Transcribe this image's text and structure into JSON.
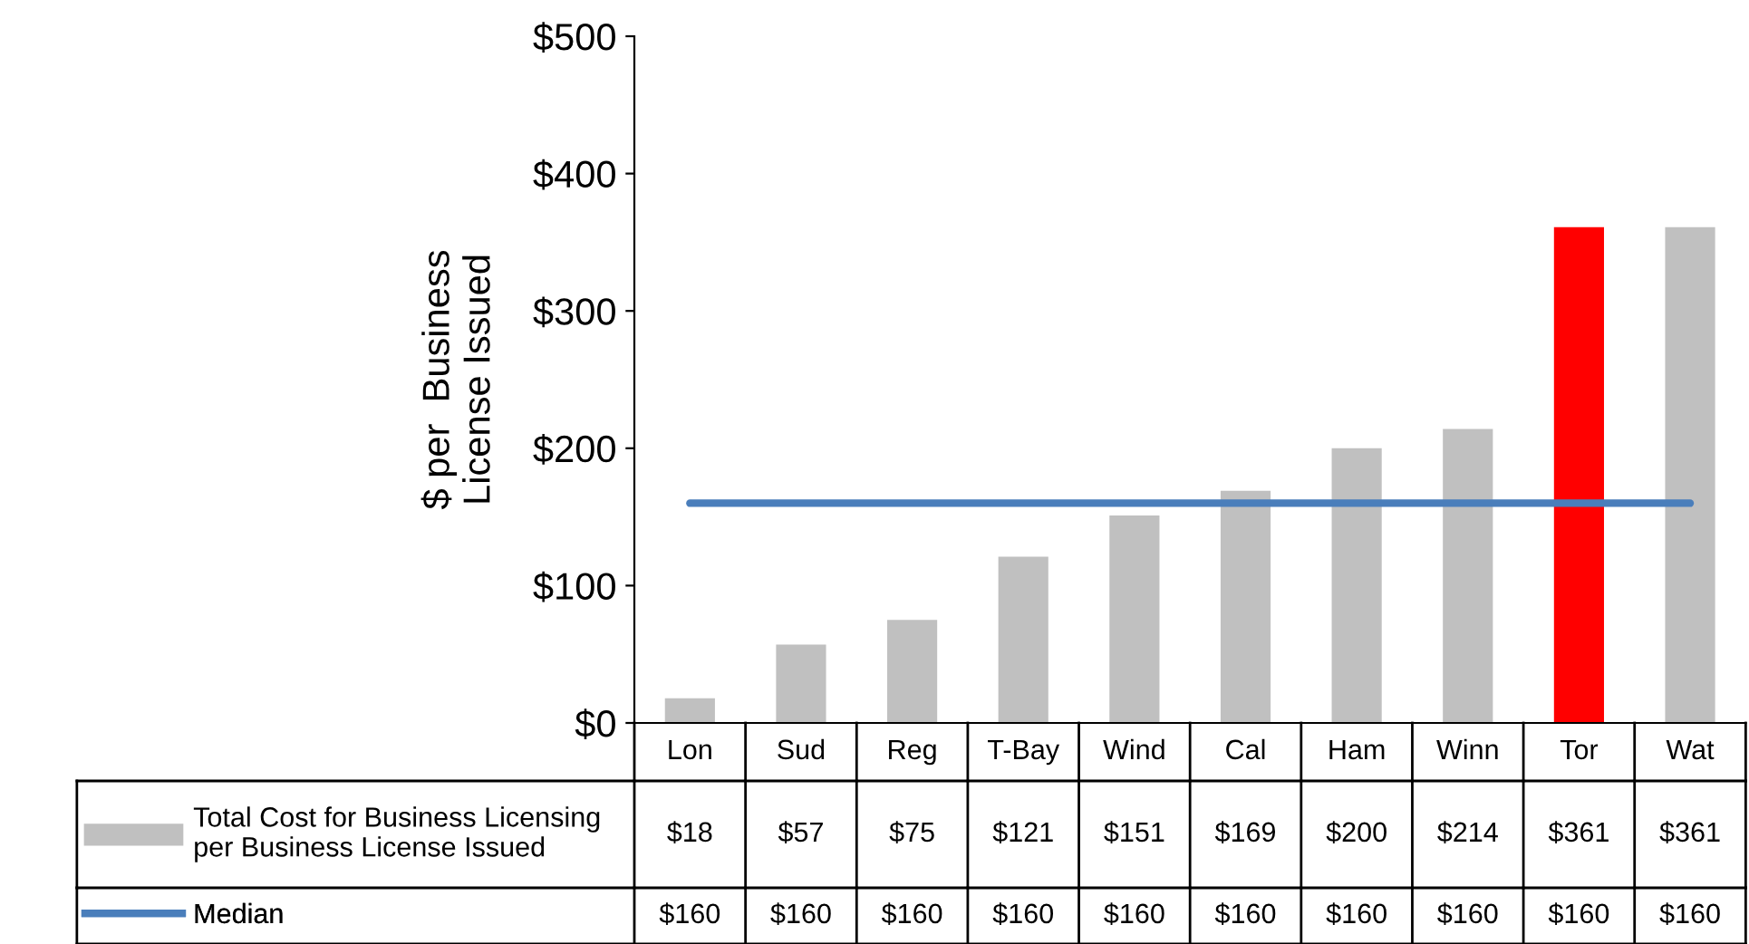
{
  "chart_data": {
    "type": "bar",
    "ylabel": "$ per  Business\nLicense Issued",
    "categories": [
      "Lon",
      "Sud",
      "Reg",
      "T-Bay",
      "Wind",
      "Cal",
      "Ham",
      "Winn",
      "Tor",
      "Wat"
    ],
    "series": [
      {
        "name": "Total Cost for Business Licensing\nper Business License Issued",
        "color": "#c0c0c0",
        "colors": [
          "#c0c0c0",
          "#c0c0c0",
          "#c0c0c0",
          "#c0c0c0",
          "#c0c0c0",
          "#c0c0c0",
          "#c0c0c0",
          "#c0c0c0",
          "#ff0000",
          "#c0c0c0"
        ],
        "values": [
          18,
          57,
          75,
          121,
          151,
          169,
          200,
          214,
          361,
          361
        ],
        "value_labels": [
          "$18",
          "$57",
          "$75",
          "$121",
          "$151",
          "$169",
          "$200",
          "$214",
          "$361",
          "$361"
        ]
      },
      {
        "name": "Median",
        "type": "line",
        "color": "#4a7ebb",
        "values": [
          160,
          160,
          160,
          160,
          160,
          160,
          160,
          160,
          160,
          160
        ],
        "value_labels": [
          "$160",
          "$160",
          "$160",
          "$160",
          "$160",
          "$160",
          "$160",
          "$160",
          "$160",
          "$160"
        ]
      }
    ],
    "ylim": [
      0,
      500
    ],
    "yticks": [
      {
        "value": 0,
        "label": "$0"
      },
      {
        "value": 100,
        "label": "$100"
      },
      {
        "value": 200,
        "label": "$200"
      },
      {
        "value": 300,
        "label": "$300"
      },
      {
        "value": 400,
        "label": "$400"
      },
      {
        "value": 500,
        "label": "$500"
      }
    ],
    "grid": false,
    "legend": "bottom"
  }
}
